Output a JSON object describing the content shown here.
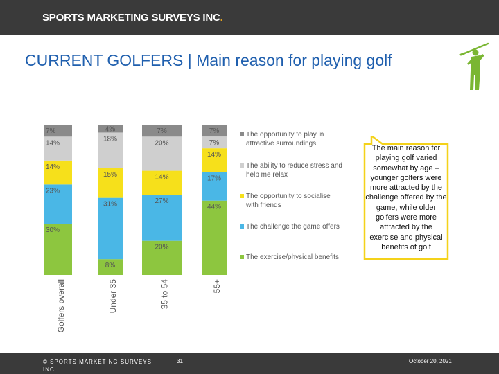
{
  "header": {
    "brand": "SPORTS MARKETING SURVEYS INC",
    "brand_dot": "."
  },
  "title": "CURRENT GOLFERS | Main reason for playing golf",
  "colors": {
    "bar": "#3a3a3a",
    "surroundings": "#8a8a8a",
    "stress": "#cfcfcf",
    "socialise": "#f6e01b",
    "challenge": "#4ab7e6",
    "exercise": "#8dc63f",
    "title": "#1f5fae",
    "golfer": "#7ab632"
  },
  "chart_data": {
    "type": "bar",
    "stacked": true,
    "categories": [
      "Golfers overall",
      "Under 35",
      "35 to 54",
      "55+"
    ],
    "series": [
      {
        "name": "The exercise/physical benefits",
        "color_key": "exercise",
        "values": [
          30,
          8,
          20,
          44
        ]
      },
      {
        "name": "The challenge the game offers",
        "color_key": "challenge",
        "values": [
          23,
          31,
          27,
          17
        ]
      },
      {
        "name": "The opportunity to socialise with friends",
        "color_key": "socialise",
        "values": [
          14,
          15,
          14,
          14
        ]
      },
      {
        "name": "The ability to reduce stress and help me relax",
        "color_key": "stress",
        "values": [
          14,
          18,
          20,
          7
        ]
      },
      {
        "name": "The opportunity to play in attractive surroundings",
        "color_key": "surroundings",
        "values": [
          7,
          4,
          7,
          7
        ]
      }
    ],
    "value_suffix": "%"
  },
  "callout": "The main reason for playing golf varied somewhat by age – younger golfers were more attracted by the challenge offered by the game, while older golfers were more attracted by the exercise and physical benefits of golf",
  "footer": {
    "copyright": "© SPORTS MARKETING SURVEYS INC.",
    "page": "31",
    "date": "October 20, 2021"
  }
}
